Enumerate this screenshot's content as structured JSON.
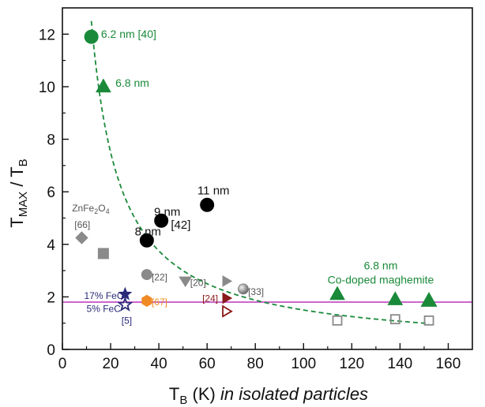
{
  "chart_data": {
    "type": "scatter",
    "title": "",
    "xlabel_main": "T",
    "xlabel_sub": "B",
    "xlabel_rest": " (K) ",
    "xlabel_italic": "in isolated particles",
    "ylabel_main": "T",
    "ylabel_sub1": "MAX",
    "ylabel_mid": " / T",
    "ylabel_sub2": "B",
    "xlim": [
      0,
      170
    ],
    "ylim": [
      0,
      13
    ],
    "xticks": [
      "0",
      "20",
      "40",
      "60",
      "80",
      "100",
      "120",
      "140",
      "160"
    ],
    "yticks": [
      "0",
      "2",
      "4",
      "6",
      "8",
      "10",
      "12"
    ],
    "xtick_values": [
      0,
      20,
      40,
      60,
      80,
      100,
      120,
      140,
      160
    ],
    "ytick_values": [
      0,
      2,
      4,
      6,
      8,
      10,
      12
    ],
    "grid": false,
    "reference_line": {
      "y": 1.8,
      "color": "#cc66cc"
    },
    "fit_curve": {
      "form": "y = 150 / x",
      "x_range": [
        12,
        152
      ],
      "color": "#1a8a3a",
      "style": "dashed"
    },
    "points": [
      {
        "x": 12,
        "y": 11.9,
        "marker": "circle",
        "color": "#1a8a3a",
        "fill": true
      },
      {
        "x": 17,
        "y": 10.0,
        "marker": "triangle-up",
        "color": "#1a8a3a",
        "fill": true
      },
      {
        "x": 35,
        "y": 4.15,
        "marker": "circle",
        "color": "#000000",
        "fill": true
      },
      {
        "x": 41,
        "y": 4.9,
        "marker": "circle",
        "color": "#000000",
        "fill": true
      },
      {
        "x": 60,
        "y": 5.5,
        "marker": "circle",
        "color": "#000000",
        "fill": true
      },
      {
        "x": 8,
        "y": 4.25,
        "marker": "diamond",
        "color": "#8a8a8a",
        "fill": true
      },
      {
        "x": 17,
        "y": 3.65,
        "marker": "square",
        "color": "#8a8a8a",
        "fill": true
      },
      {
        "x": 35,
        "y": 2.85,
        "marker": "circle",
        "color": "#8a8a8a",
        "fill": true
      },
      {
        "x": 51,
        "y": 2.6,
        "marker": "triangle-down",
        "color": "#8a8a8a",
        "fill": true
      },
      {
        "x": 68,
        "y": 2.6,
        "marker": "triangle-right",
        "color": "#8a8a8a",
        "fill": true
      },
      {
        "x": 75,
        "y": 2.3,
        "marker": "sphere",
        "color": "#8a8a8a",
        "fill": true
      },
      {
        "x": 68,
        "y": 1.95,
        "marker": "triangle-right",
        "color": "#8b1a1a",
        "fill": true
      },
      {
        "x": 68,
        "y": 1.45,
        "marker": "triangle-right",
        "color": "#8b1a1a",
        "fill": false
      },
      {
        "x": 26,
        "y": 2.1,
        "marker": "star",
        "color": "#2a2a7a",
        "fill": true
      },
      {
        "x": 26,
        "y": 1.7,
        "marker": "star",
        "color": "#2a2a7a",
        "fill": false
      },
      {
        "x": 35,
        "y": 1.85,
        "marker": "hexagon",
        "color": "#f08a24",
        "fill": true
      },
      {
        "x": 114,
        "y": 2.1,
        "marker": "triangle-up",
        "color": "#1a8a3a",
        "fill": true
      },
      {
        "x": 138,
        "y": 1.9,
        "marker": "triangle-up",
        "color": "#1a8a3a",
        "fill": true
      },
      {
        "x": 152,
        "y": 1.85,
        "marker": "triangle-up",
        "color": "#1a8a3a",
        "fill": true
      },
      {
        "x": 152,
        "y": 1.85,
        "marker": "triangle-up",
        "color": "#1a8a3a",
        "fill": false
      },
      {
        "x": 114,
        "y": 1.1,
        "marker": "square",
        "color": "#8a8a8a",
        "fill": false
      },
      {
        "x": 138,
        "y": 1.15,
        "marker": "square",
        "color": "#8a8a8a",
        "fill": false
      },
      {
        "x": 152,
        "y": 1.1,
        "marker": "square",
        "color": "#8a8a8a",
        "fill": false
      }
    ],
    "annotations": [
      {
        "text": "6.2 nm [40]",
        "x": 16,
        "y": 12.0,
        "color": "#1a8a3a",
        "size": 14
      },
      {
        "text": "6.8 nm",
        "x": 22,
        "y": 10.15,
        "color": "#1a8a3a",
        "size": 14
      },
      {
        "text": "8 nm",
        "x": 30,
        "y": 4.5,
        "color": "#111111",
        "size": 15
      },
      {
        "text": "9 nm",
        "x": 38,
        "y": 5.25,
        "color": "#111111",
        "size": 15
      },
      {
        "text": "11 nm",
        "x": 56,
        "y": 6.05,
        "color": "#111111",
        "size": 15
      },
      {
        "text": "[42]",
        "x": 45,
        "y": 4.75,
        "color": "#111111",
        "size": 15
      },
      {
        "text": "[66]",
        "x": 5,
        "y": 4.75,
        "color": "#555555",
        "size": 12
      },
      {
        "text": "[22]",
        "x": 37,
        "y": 2.75,
        "color": "#555555",
        "size": 12
      },
      {
        "text": "[20]",
        "x": 53,
        "y": 2.55,
        "color": "#555555",
        "size": 12
      },
      {
        "text": "[33]",
        "x": 77,
        "y": 2.2,
        "color": "#555555",
        "size": 12
      },
      {
        "text": "[24]",
        "x": 58,
        "y": 1.95,
        "color": "#8b1a1a",
        "size": 12
      },
      {
        "text": "[67]",
        "x": 37,
        "y": 1.8,
        "color": "#f08a24",
        "size": 12
      },
      {
        "text": "17% FeC",
        "x": 9,
        "y": 2.05,
        "color": "#2a2a7a",
        "size": 12
      },
      {
        "text": "5% FeC",
        "x": 10,
        "y": 1.55,
        "color": "#2a2a7a",
        "size": 12
      },
      {
        "text": "[5]",
        "x": 24.5,
        "y": 1.1,
        "color": "#2a2a7a",
        "size": 12
      },
      {
        "text": "6.8 nm",
        "x": 132,
        "y": 3.2,
        "color": "#1a8a3a",
        "size": 14
      },
      {
        "text": "Co-doped maghemite",
        "x": 132,
        "y": 2.65,
        "color": "#1a8a3a",
        "size": 14
      }
    ],
    "compound_label": {
      "main": "ZnFe",
      "sub1": "2",
      "mid": "O",
      "sub2": "4",
      "x": 4,
      "y": 5.25,
      "color": "#555555",
      "size": 12
    }
  }
}
